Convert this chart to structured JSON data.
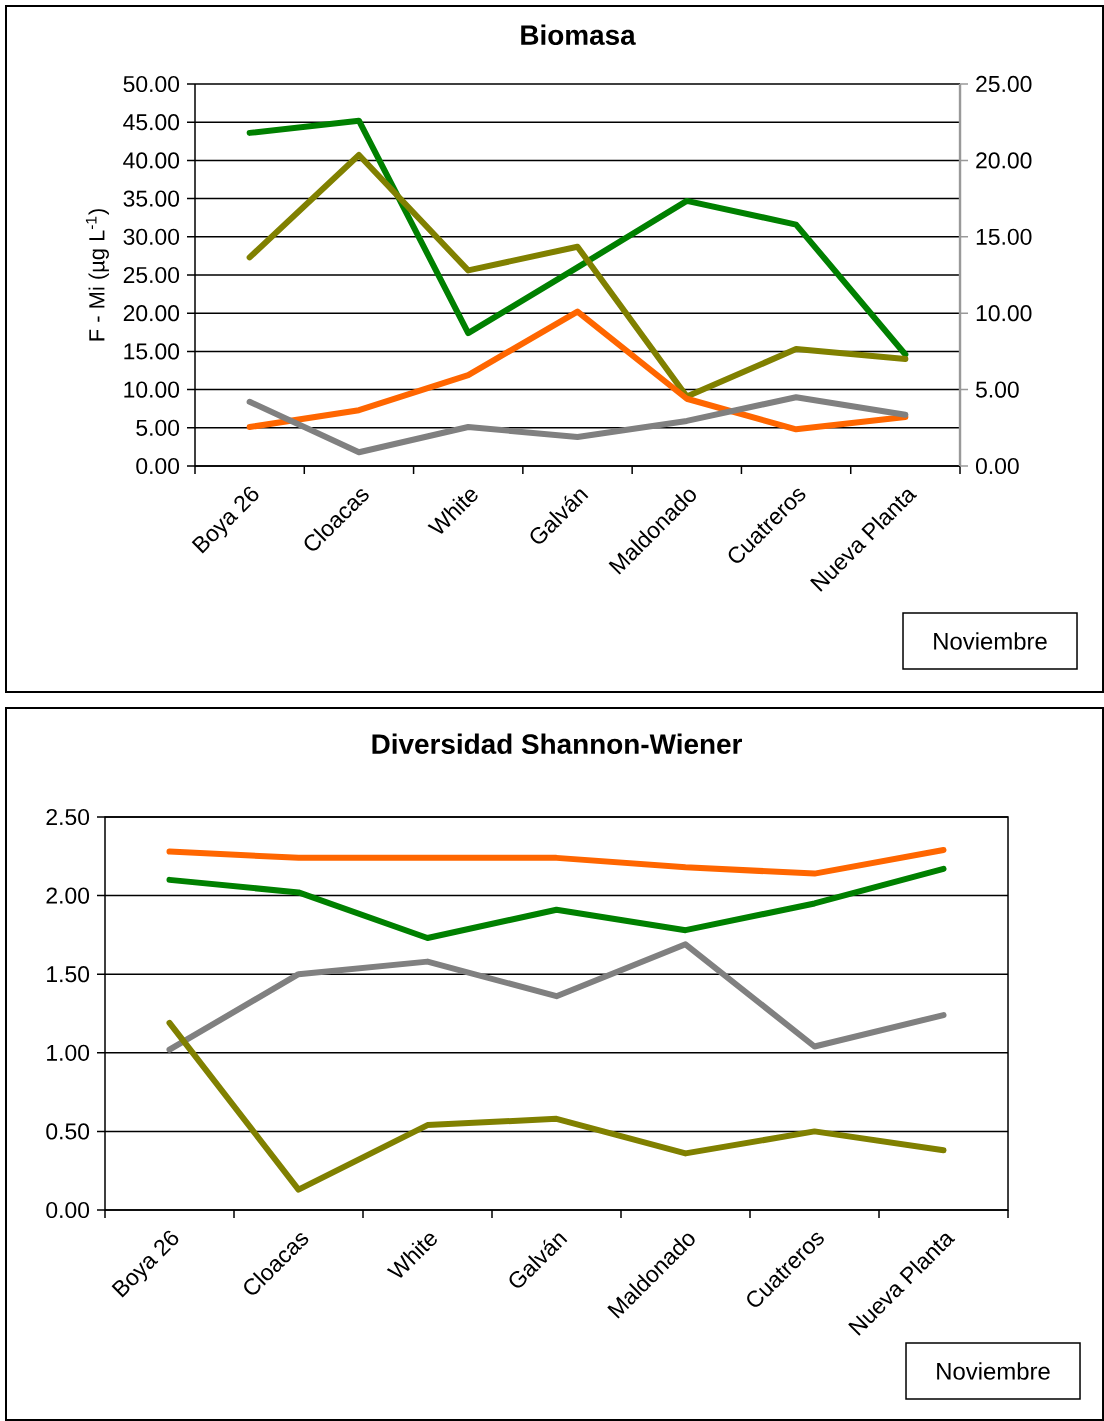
{
  "chart_data": [
    {
      "type": "line",
      "title": "Biomasa",
      "ylabel": "F - Mi  (µg L$^{-1}$)",
      "categories": [
        "Boya 26",
        "Cloacas",
        "White",
        "Galván",
        "Maldonado",
        "Cuatreros",
        "Nueva Planta"
      ],
      "series": [
        {
          "color": "#008000",
          "values": [
            43.6,
            45.2,
            17.4,
            26.0,
            34.7,
            31.6,
            14.6
          ]
        },
        {
          "color": "#808000",
          "values": [
            27.3,
            40.7,
            25.6,
            28.7,
            9.1,
            15.3,
            14.0
          ]
        },
        {
          "color": "#ff6600",
          "values": [
            5.1,
            7.3,
            11.9,
            20.2,
            8.8,
            4.8,
            6.4
          ]
        },
        {
          "color": "#808080",
          "values": [
            8.4,
            1.8,
            5.1,
            3.8,
            5.9,
            9.0,
            6.7
          ]
        }
      ],
      "ylim": [
        0,
        50
      ],
      "yticks": [
        {
          "value": 0,
          "label": "0.00"
        },
        {
          "value": 5,
          "label": "5.00"
        },
        {
          "value": 10,
          "label": "10.00"
        },
        {
          "value": 15,
          "label": "15.00"
        },
        {
          "value": 20,
          "label": "20.00"
        },
        {
          "value": 25,
          "label": "25.00"
        },
        {
          "value": 30,
          "label": "30.00"
        },
        {
          "value": 35,
          "label": "35.00"
        },
        {
          "value": 40,
          "label": "40.00"
        },
        {
          "value": 45,
          "label": "45.00"
        },
        {
          "value": 50,
          "label": "50.00"
        }
      ],
      "y2lim": [
        0,
        25
      ],
      "y2ticks": [
        {
          "value": 0,
          "label": "0.00"
        },
        {
          "value": 5,
          "label": "5.00"
        },
        {
          "value": 10,
          "label": "10.00"
        },
        {
          "value": 15,
          "label": "15.00"
        },
        {
          "value": 20,
          "label": "20.00"
        },
        {
          "value": 25,
          "label": "25.00"
        }
      ],
      "grid": "y",
      "annotations": [
        "Noviembre"
      ]
    },
    {
      "type": "line",
      "title": "Diversidad Shannon-Wiener",
      "categories": [
        "Boya 26",
        "Cloacas",
        "White",
        "Galván",
        "Maldonado",
        "Cuatreros",
        "Nueva Planta"
      ],
      "series": [
        {
          "color": "#ff6600",
          "values": [
            2.28,
            2.24,
            2.24,
            2.24,
            2.18,
            2.14,
            2.29
          ]
        },
        {
          "color": "#008000",
          "values": [
            2.1,
            2.02,
            1.73,
            1.91,
            1.78,
            1.95,
            2.17
          ]
        },
        {
          "color": "#808080",
          "values": [
            1.02,
            1.5,
            1.58,
            1.36,
            1.69,
            1.04,
            1.24
          ]
        },
        {
          "color": "#808000",
          "values": [
            1.19,
            0.13,
            0.54,
            0.58,
            0.36,
            0.5,
            0.38
          ]
        }
      ],
      "ylim": [
        0,
        2.5
      ],
      "yticks": [
        {
          "value": 0,
          "label": "0.00"
        },
        {
          "value": 0.5,
          "label": "0.50"
        },
        {
          "value": 1,
          "label": "1.00"
        },
        {
          "value": 1.5,
          "label": "1.50"
        },
        {
          "value": 2,
          "label": "2.00"
        },
        {
          "value": 2.5,
          "label": "2.50"
        }
      ],
      "grid": "y",
      "annotations": [
        "Noviembre"
      ]
    }
  ]
}
